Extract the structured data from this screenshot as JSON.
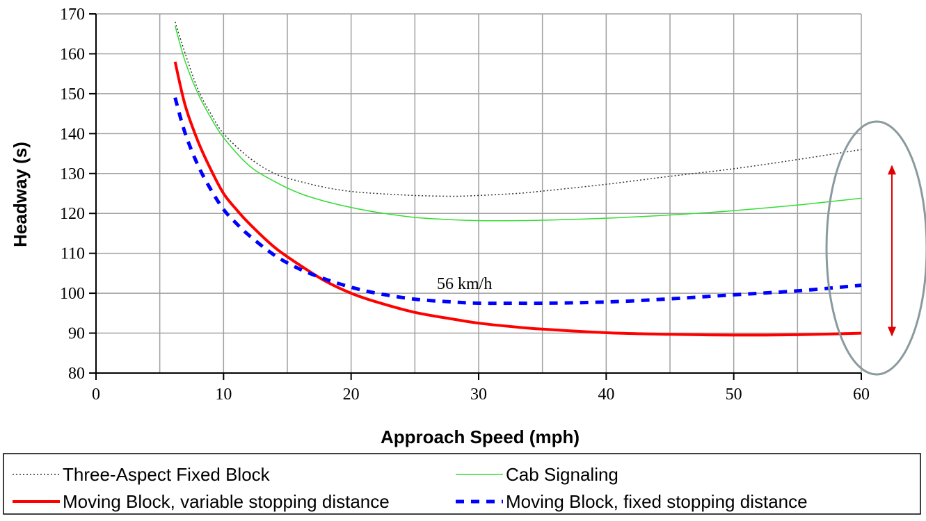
{
  "chart_data": {
    "type": "line",
    "title": "",
    "xlabel": "Approach Speed (mph)",
    "ylabel": "Headway (s)",
    "xlim": [
      0,
      60
    ],
    "ylim": [
      80,
      170
    ],
    "xticks": [
      0,
      10,
      20,
      30,
      40,
      50,
      60
    ],
    "yticks": [
      80,
      90,
      100,
      110,
      120,
      130,
      140,
      150,
      160,
      170
    ],
    "x_minor_gridlines": [
      5,
      15,
      25,
      35,
      45,
      55
    ],
    "grid": true,
    "legend_position": "bottom",
    "colors": {
      "three_aspect": "#333333",
      "cab": "#33dd33",
      "moving_variable": "#ff0000",
      "moving_fixed": "#0000ff",
      "ellipse": "#8a9a9e",
      "arrow": "#e00000"
    },
    "series": [
      {
        "name": "Three-Aspect Fixed Block",
        "style": "dotted",
        "color": "#333333",
        "x": [
          6.2,
          7,
          8,
          9,
          10,
          12,
          14,
          16,
          18,
          20,
          22,
          25,
          28,
          30,
          33,
          35,
          40,
          45,
          50,
          55,
          60
        ],
        "y": [
          168,
          160,
          151,
          145,
          140,
          134,
          130,
          128,
          126.5,
          125.5,
          125,
          124.5,
          124.3,
          124.5,
          125,
          125.6,
          127.3,
          129.3,
          131.2,
          133.5,
          136
        ]
      },
      {
        "name": "Cab Signaling",
        "style": "solid",
        "color": "#33dd33",
        "x": [
          6.2,
          7,
          8,
          9,
          10,
          12,
          14,
          16,
          18,
          20,
          22,
          25,
          28,
          30,
          33,
          35,
          40,
          45,
          50,
          55,
          60
        ],
        "y": [
          167,
          158,
          150,
          144,
          139,
          132,
          128,
          125,
          123,
          121.5,
          120.3,
          119,
          118.4,
          118.2,
          118.2,
          118.3,
          118.8,
          119.6,
          120.7,
          122.1,
          123.8
        ]
      },
      {
        "name": "Moving Block, variable stopping distance",
        "style": "solid-thick",
        "color": "#ff0000",
        "x": [
          6.2,
          7,
          8,
          9,
          10,
          11,
          12,
          14,
          16,
          18,
          20,
          22,
          25,
          28,
          30,
          33,
          35,
          40,
          45,
          50,
          55,
          60
        ],
        "y": [
          158,
          147,
          138,
          131,
          125,
          121,
          117.5,
          111.5,
          107,
          103,
          100,
          97.8,
          95.2,
          93.5,
          92.5,
          91.5,
          91,
          90.1,
          89.7,
          89.5,
          89.6,
          90
        ]
      },
      {
        "name": "Moving Block, fixed stopping distance",
        "style": "dashed-thick",
        "color": "#0000ff",
        "x": [
          6.2,
          7,
          8,
          9,
          10,
          11,
          12,
          14,
          16,
          18,
          20,
          22,
          25,
          28,
          30,
          33,
          35,
          40,
          45,
          50,
          55,
          60
        ],
        "y": [
          149,
          140,
          132,
          126,
          121,
          117.5,
          114.5,
          109.5,
          106,
          103.5,
          101.5,
          100,
          98.5,
          97.8,
          97.5,
          97.5,
          97.5,
          97.8,
          98.6,
          99.6,
          100.6,
          102
        ]
      }
    ],
    "annotations": [
      {
        "text": "56 km/h",
        "x": 30,
        "y": 102.5
      },
      {
        "type": "ellipse",
        "description": "encloses curve ends at 60 mph"
      },
      {
        "type": "double-arrow",
        "from": 90,
        "to": 136,
        "at_x": 62
      }
    ]
  }
}
